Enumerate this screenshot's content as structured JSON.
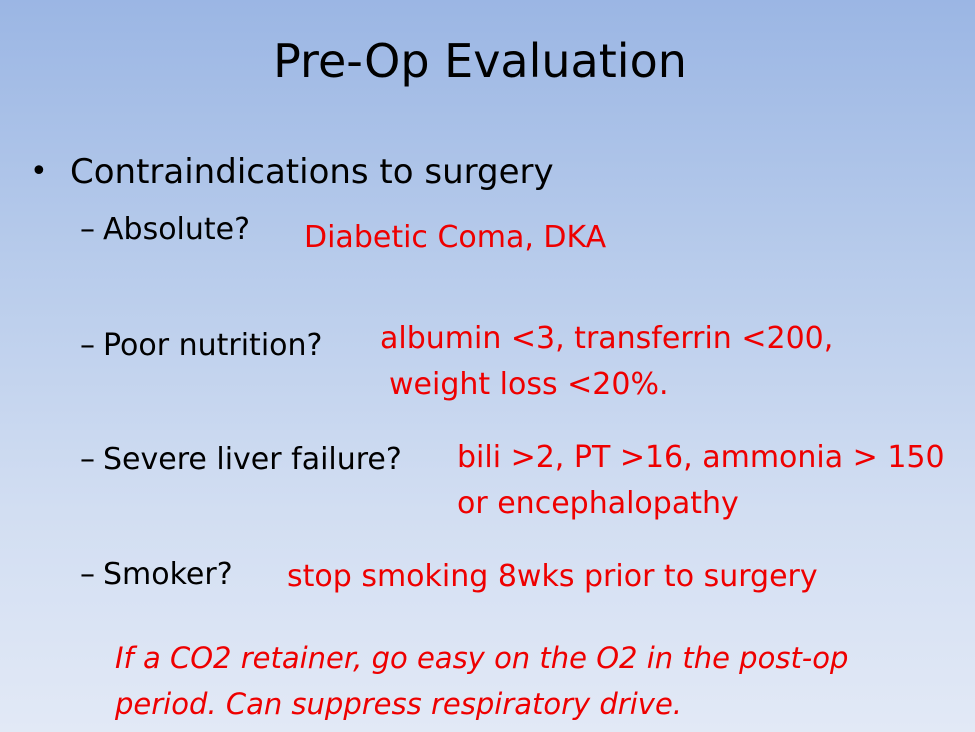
{
  "slide": {
    "title": "Pre-Op Evaluation",
    "bullet": {
      "marker": "•",
      "text": "Contraindications to surgery"
    },
    "items": [
      {
        "dash": "–",
        "label": "Absolute?",
        "answer_lines": [
          "Diabetic Coma, DKA"
        ]
      },
      {
        "dash": "–",
        "label": "Poor nutrition?",
        "answer_lines": [
          "albumin <3, transferrin <200,",
          "weight loss <20%."
        ]
      },
      {
        "dash": "–",
        "label": "Severe liver failure?",
        "answer_lines": [
          "bili >2, PT >16, ammonia > 150",
          "or encephalopathy"
        ]
      },
      {
        "dash": "–",
        "label": "Smoker?",
        "answer_lines": [
          "stop smoking 8wks prior to surgery"
        ]
      }
    ],
    "note_lines": [
      "If a CO2 retainer, go easy on the O2 in the post-op",
      "period. Can suppress respiratory drive."
    ],
    "colors": {
      "text": "#000000",
      "answer": "#ee0000",
      "background_top": "#9bb6e4",
      "background_bottom": "#e2e9f6"
    }
  }
}
